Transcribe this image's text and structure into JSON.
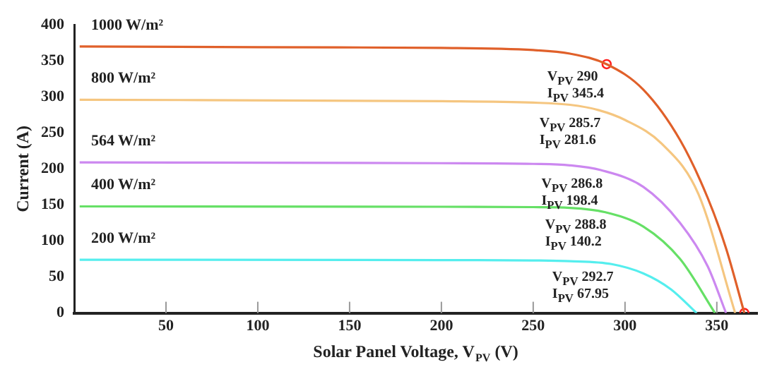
{
  "chart_data": {
    "type": "line",
    "xlabel": "Solar Panel Voltage, V$_{PV}$ (V)",
    "ylabel": "Current (A)",
    "xlim": [
      0,
      372
    ],
    "ylim": [
      0,
      400
    ],
    "xticks": [
      50,
      100,
      150,
      200,
      250,
      300,
      350
    ],
    "yticks": [
      0,
      50,
      100,
      150,
      200,
      250,
      300,
      350,
      400
    ],
    "grid": false,
    "legend": false,
    "marker": "none",
    "line_style": "solid",
    "series": [
      {
        "name": "1000 W/m²",
        "color": "#e0602a",
        "x": [
          3,
          100,
          200,
          250,
          270,
          290,
          310,
          330,
          345,
          355,
          365
        ],
        "values": [
          370,
          369,
          368,
          365,
          360,
          345.4,
          310,
          240,
          160,
          90,
          0
        ]
      },
      {
        "name": "800 W/m²",
        "color": "#f5c680",
        "x": [
          3,
          200,
          250,
          270,
          285.7,
          300,
          320,
          340,
          360
        ],
        "values": [
          296,
          294,
          292,
          289,
          281.6,
          268,
          235,
          165,
          0
        ]
      },
      {
        "name": "564 W/m²",
        "color": "#cc88f0",
        "x": [
          3,
          200,
          250,
          270,
          286.8,
          310,
          330,
          345,
          355
        ],
        "values": [
          209,
          208,
          207,
          205,
          198.4,
          175,
          125,
          65,
          0
        ]
      },
      {
        "name": "400 W/m²",
        "color": "#66e066",
        "x": [
          3,
          200,
          250,
          270,
          288.8,
          310,
          330,
          349
        ],
        "values": [
          148,
          147.5,
          147,
          146,
          140.2,
          120,
          75,
          0
        ]
      },
      {
        "name": "200 W/m²",
        "color": "#55eeee",
        "x": [
          3,
          200,
          250,
          270,
          292.7,
          310,
          325,
          339
        ],
        "values": [
          74,
          73.5,
          73,
          72,
          67.95,
          55,
          33,
          0
        ]
      },
      {
        "type": "scatter",
        "marker": "circle",
        "color": "#ff2020",
        "x": [
          290,
          365
        ],
        "values": [
          345.4,
          0
        ]
      }
    ],
    "annotations": [
      {
        "text": "V$_{PV}$ 290",
        "x": 290,
        "y": 345.4
      },
      {
        "text": "I$_{PV}$ 345.4",
        "x": 290,
        "y": 345.4
      },
      {
        "text": "V$_{PV}$ 285.7",
        "x": 285.7,
        "y": 281.6
      },
      {
        "text": "I$_{PV}$ 281.6",
        "x": 285.7,
        "y": 281.6
      },
      {
        "text": "V$_{PV}$ 286.8",
        "x": 286.8,
        "y": 198.4
      },
      {
        "text": "I$_{PV}$ 198.4",
        "x": 286.8,
        "y": 198.4
      },
      {
        "text": "V$_{PV}$ 288.8",
        "x": 288.8,
        "y": 140.2
      },
      {
        "text": "I$_{PV}$ 140.2",
        "x": 288.8,
        "y": 140.2
      },
      {
        "text": "V$_{PV}$ 292.7",
        "x": 292.7,
        "y": 67.95
      },
      {
        "text": "I$_{PV}$ 67.95",
        "x": 292.7,
        "y": 67.95
      }
    ]
  }
}
